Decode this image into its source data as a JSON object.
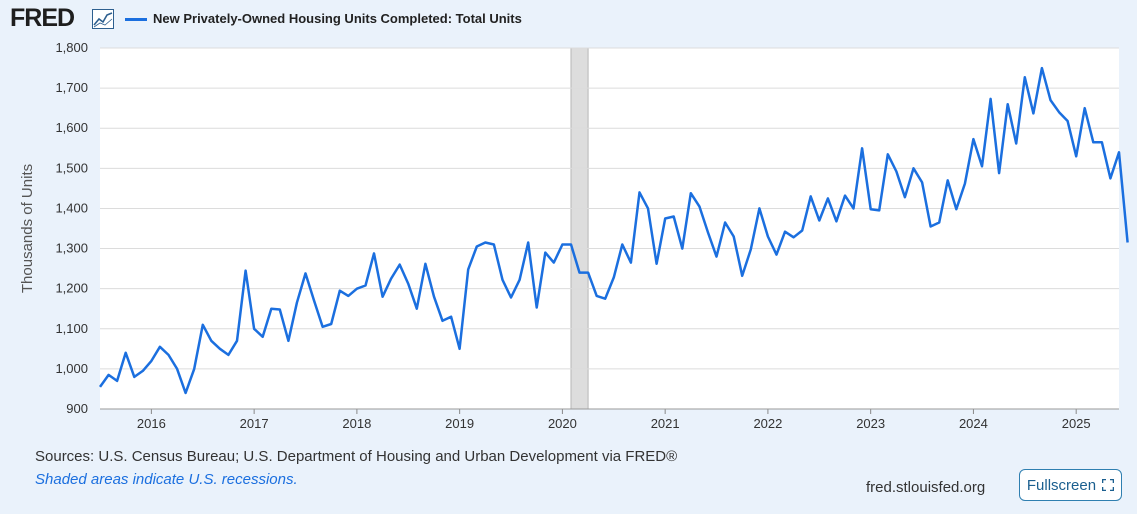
{
  "header": {
    "logo_text": "FRED",
    "logo_icon": "chart-line-icon",
    "series_title": "New Privately-Owned Housing Units Completed: Total Units"
  },
  "footer": {
    "sources": "Sources: U.S. Census Bureau; U.S. Department of Housing and Urban Development via FRED®",
    "recession_note": "Shaded areas indicate U.S. recessions.",
    "url": "fred.stlouisfed.org",
    "fullscreen_label": "Fullscreen",
    "fullscreen_icon": "expand-icon"
  },
  "colors": {
    "series": "#1b6fdf",
    "background": "#eaf2fb",
    "plot_bg": "#ffffff",
    "recession": "#dddddd"
  },
  "chart_data": {
    "type": "line",
    "title": "New Privately-Owned Housing Units Completed: Total Units",
    "ylabel": "Thousands of Units",
    "xlabel": "",
    "ylim": [
      900,
      1800
    ],
    "y_ticks": [
      900,
      1000,
      1100,
      1200,
      1300,
      1400,
      1500,
      1600,
      1700,
      1800
    ],
    "y_tick_labels": [
      "900",
      "1,000",
      "1,100",
      "1,200",
      "1,300",
      "1,400",
      "1,500",
      "1,600",
      "1,700",
      "1,800"
    ],
    "x_start": "2015-07",
    "x_end": "2025-06",
    "x_ticks": [
      "2016",
      "2017",
      "2018",
      "2019",
      "2020",
      "2021",
      "2022",
      "2023",
      "2024",
      "2025"
    ],
    "grid": true,
    "recessions": [
      {
        "start": "2020-02",
        "end": "2020-04"
      }
    ],
    "series": [
      {
        "name": "New Privately-Owned Housing Units Completed: Total Units",
        "values": [
          955,
          985,
          970,
          1040,
          980,
          995,
          1020,
          1055,
          1035,
          1000,
          940,
          1000,
          1110,
          1070,
          1050,
          1035,
          1070,
          1245,
          1100,
          1080,
          1150,
          1148,
          1070,
          1165,
          1238,
          1170,
          1105,
          1112,
          1195,
          1182,
          1200,
          1208,
          1288,
          1180,
          1225,
          1260,
          1212,
          1150,
          1262,
          1180,
          1120,
          1130,
          1050,
          1248,
          1305,
          1315,
          1310,
          1222,
          1178,
          1222,
          1315,
          1153,
          1290,
          1265,
          1310,
          1310,
          1240,
          1240,
          1182,
          1175,
          1228,
          1310,
          1265,
          1440,
          1400,
          1262,
          1375,
          1380,
          1300,
          1438,
          1405,
          1340,
          1280,
          1365,
          1330,
          1232,
          1298,
          1400,
          1330,
          1285,
          1342,
          1328,
          1345,
          1430,
          1370,
          1425,
          1368,
          1432,
          1400,
          1550,
          1398,
          1395,
          1535,
          1492,
          1428,
          1500,
          1465,
          1355,
          1365,
          1470,
          1398,
          1462,
          1573,
          1505,
          1673,
          1488,
          1660,
          1562,
          1727,
          1637,
          1750,
          1670,
          1640,
          1618,
          1530,
          1650,
          1565,
          1565,
          1475,
          1540,
          1315
        ]
      }
    ]
  }
}
